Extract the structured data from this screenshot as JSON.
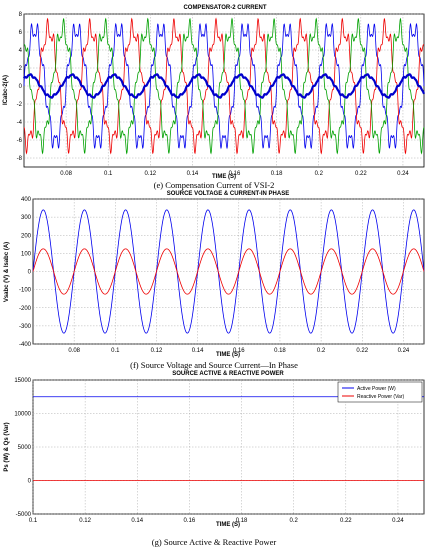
{
  "chart_data": [
    {
      "type": "line",
      "title": "COMPENSATOR-2 CURRENT",
      "xlabel": "TIME (S)",
      "ylabel": "ICabc-2(A)",
      "caption": "(e) Compensation Current of VSI-2",
      "xlim": [
        0.06,
        0.25
      ],
      "ylim": [
        -9,
        8
      ],
      "xticks": [
        "0.08",
        "0.1",
        "0.12",
        "0.14",
        "0.16",
        "0.18",
        "0.2",
        "0.22",
        "0.24"
      ],
      "xtick_values": [
        0.08,
        0.1,
        0.12,
        0.14,
        0.16,
        0.18,
        0.2,
        0.22,
        0.24
      ],
      "yticks": [
        "8",
        "6",
        "4",
        "2",
        "0",
        "-2",
        "-4",
        "-6",
        "-8"
      ],
      "ytick_values": [
        8,
        6,
        4,
        2,
        0,
        -2,
        -4,
        -6,
        -8
      ],
      "grid": true,
      "frequency_hz": 50,
      "series": [
        {
          "color": "#0000ee",
          "amplitude": 6.2,
          "phase_deg": 0,
          "ripple": 0.9
        },
        {
          "color": "#ee0000",
          "amplitude": 6.2,
          "phase_deg": -120,
          "ripple": 0.9
        },
        {
          "color": "#00a000",
          "amplitude": 6.2,
          "phase_deg": 120,
          "ripple": 0.9
        },
        {
          "color": "#0000cc",
          "amplitude": 1.2,
          "phase_deg": 40,
          "ripple": 0.1,
          "width": 2.2
        }
      ]
    },
    {
      "type": "line",
      "title": "SOURCE VOLTAGE & CURRENT-IN PHASE",
      "xlabel": "TIME (S)",
      "ylabel": "Vsabc (V) & Isabc (A)",
      "caption": "(f) Source Voltage and Source Current—In Phase",
      "xlim": [
        0.06,
        0.25
      ],
      "ylim": [
        -400,
        400
      ],
      "xticks": [
        "0.08",
        "0.1",
        "0.12",
        "0.14",
        "0.16",
        "0.18",
        "0.2",
        "0.22",
        "0.24"
      ],
      "xtick_values": [
        0.08,
        0.1,
        0.12,
        0.14,
        0.16,
        0.18,
        0.2,
        0.22,
        0.24
      ],
      "yticks": [
        "400",
        "300",
        "200",
        "100",
        "0",
        "-100",
        "-200",
        "-300",
        "-400"
      ],
      "ytick_values": [
        400,
        300,
        200,
        100,
        0,
        -100,
        -200,
        -300,
        -400
      ],
      "grid": true,
      "frequency_hz": 50,
      "series": [
        {
          "color": "#0000ee",
          "amplitude": 340,
          "phase_deg": 0,
          "ripple": 0
        },
        {
          "color": "#ee0000",
          "amplitude": 125,
          "phase_deg": 0,
          "ripple": 0
        }
      ]
    },
    {
      "type": "line",
      "title": "SOURCE ACTIVE & REACTIVE POWER",
      "xlabel": "TIME (S)",
      "ylabel": "Ps (W) & Qs (Var)",
      "caption": "(g) Source Active & Reactive Power",
      "xlim": [
        0.1,
        0.25
      ],
      "ylim": [
        -5000,
        15000
      ],
      "xticks": [
        "0.1",
        "0.12",
        "0.14",
        "0.16",
        "0.18",
        "0.2",
        "0.22",
        "0.24"
      ],
      "xtick_values": [
        0.1,
        0.12,
        0.14,
        0.16,
        0.18,
        0.2,
        0.22,
        0.24
      ],
      "yticks": [
        "15000",
        "10000",
        "5000",
        "0",
        "-5000"
      ],
      "ytick_values": [
        15000,
        10000,
        5000,
        0,
        -5000
      ],
      "grid": true,
      "legend": "top-right",
      "series": [
        {
          "name": "Active Power (W)",
          "color": "#0000ee",
          "x": [
            0.1,
            0.25
          ],
          "y": [
            12500,
            12500
          ]
        },
        {
          "name": "Reactive Power (Var)",
          "color": "#ee0000",
          "x": [
            0.1,
            0.25
          ],
          "y": [
            0,
            0
          ]
        }
      ]
    }
  ]
}
